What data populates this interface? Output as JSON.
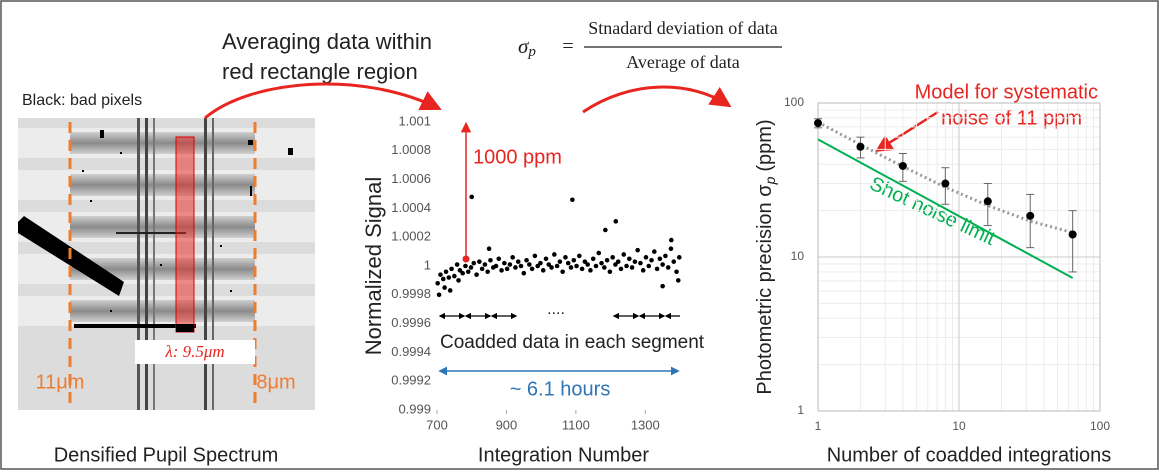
{
  "annotation": {
    "averaging": [
      "Averaging data within",
      "red rectangle region"
    ],
    "formula": {
      "symbol": "σ",
      "subscript": "p",
      "equals": "=",
      "numerator": "Stnadard deviation of data",
      "denominator": "Average of data"
    }
  },
  "image_panel": {
    "note": "Black: bad pixels",
    "wavelength": "λ: 9.5μm",
    "left_edge": "11μm",
    "right_edge": "8μm",
    "title": "Densified Pupil Spectrum"
  },
  "chart_data": [
    {
      "type": "scatter",
      "x_label": "Integration Number",
      "y_label": "Normalized Signal",
      "xlim": [
        700,
        1400
      ],
      "ylim": [
        0.999,
        1.001
      ],
      "xticks": [
        700,
        900,
        1100,
        1300
      ],
      "yticks": [
        0.999,
        0.9992,
        0.9994,
        0.9996,
        0.9998,
        1,
        1.0002,
        1.0004,
        1.0006,
        1.0008,
        1.001
      ],
      "grid": false,
      "color": "#000000",
      "x": [
        702,
        710,
        718,
        726,
        734,
        742,
        750,
        758,
        766,
        774,
        782,
        790,
        798,
        806,
        814,
        822,
        830,
        838,
        846,
        854,
        862,
        870,
        878,
        886,
        894,
        902,
        910,
        918,
        926,
        934,
        942,
        950,
        958,
        966,
        974,
        982,
        990,
        998,
        1006,
        1014,
        1022,
        1030,
        1038,
        1046,
        1054,
        1062,
        1070,
        1078,
        1086,
        1094,
        1102,
        1110,
        1118,
        1126,
        1134,
        1142,
        1150,
        1158,
        1166,
        1174,
        1182,
        1190,
        1198,
        1206,
        1214,
        1222,
        1230,
        1238,
        1246,
        1254,
        1262,
        1270,
        1278,
        1286,
        1294,
        1302,
        1310,
        1318,
        1326,
        1334,
        1342,
        1350,
        1358,
        1366,
        1374,
        1382,
        1390,
        1398,
        706,
        722,
        738,
        762,
        800,
        850,
        1090,
        1185,
        1215,
        1350,
        1375,
        1395
      ],
      "y": [
        0.99988,
        0.99994,
        0.99991,
        0.99996,
        0.99992,
        0.99998,
        0.99993,
        1.00001,
        0.99997,
        0.99995,
        1,
        0.99996,
        0.99999,
        1.00002,
        0.99994,
        1.00003,
        0.99998,
        1.00001,
        0.99996,
        1.00004,
        0.99999,
        1,
        1.00005,
        0.99997,
        1.00002,
        0.99998,
        1.00001,
        1.00006,
        0.99999,
        1.00003,
        1,
        0.99995,
        1.00004,
        1.00001,
        0.99998,
        1.00007,
        1,
        1.00002,
        0.99997,
        1.00005,
        1.00001,
        0.99999,
        1.00008,
        1,
        1.00003,
        0.99996,
        1.00006,
        1.00002,
        0.99999,
        1.00004,
        1,
        1.00007,
        0.99998,
        1.00003,
        1.00001,
        0.99997,
        1.00005,
        1,
        1.00009,
        1.00002,
        0.99999,
        1.00004,
        0.99996,
        1.00006,
        1.00001,
        1.00003,
        0.99998,
        1.00008,
        1,
        1.00005,
        0.99999,
        1.00003,
        1.00011,
        1.00002,
        0.99997,
        1.00006,
        1,
        1.00004,
        1.0001,
        0.99998,
        1.00005,
        1.00001,
        1.00007,
        0.99999,
        1.00012,
        1.00003,
        0.99996,
        1.00006,
        0.9998,
        0.99985,
        0.99983,
        0.9999,
        1.00048,
        1.00012,
        1.00046,
        1.00025,
        1.00031,
        0.99986,
        1.00018,
        0.9999
      ],
      "annotations": {
        "amplitude": "1000 ppm",
        "segments": "Coadded data in each segment",
        "ellipsis": "....",
        "duration": "~ 6.1 hours"
      }
    },
    {
      "type": "line",
      "log_scale": true,
      "grid": true,
      "x_label": "Number of coadded integrations",
      "y_label": "Photometric precision σ",
      "y_label_subscript": "p",
      "y_label_unit": "(ppm)",
      "xlim": [
        1,
        100
      ],
      "ylim": [
        1,
        100
      ],
      "xticks": [
        1,
        10,
        100
      ],
      "yticks": [
        1,
        10,
        100
      ],
      "measured": {
        "x": [
          1,
          2,
          4,
          8,
          16,
          32,
          64
        ],
        "y": [
          74,
          52,
          39,
          30,
          23,
          18.5,
          14
        ],
        "errors": [
          5,
          8,
          8,
          8,
          7,
          7,
          6
        ],
        "color": "#000000"
      },
      "model": {
        "label": [
          "Model for systematic",
          "noise of 11 ppm"
        ],
        "x": [
          1,
          2,
          4,
          8,
          16,
          32,
          64
        ],
        "y": [
          75,
          53.6,
          38.7,
          28.4,
          21.6,
          17.1,
          14.4
        ],
        "color": "#999999"
      },
      "shot_noise": {
        "label": "Shot noise limit",
        "x": [
          1,
          64
        ],
        "y": [
          58,
          7.3
        ],
        "color": "#00b050"
      }
    }
  ]
}
